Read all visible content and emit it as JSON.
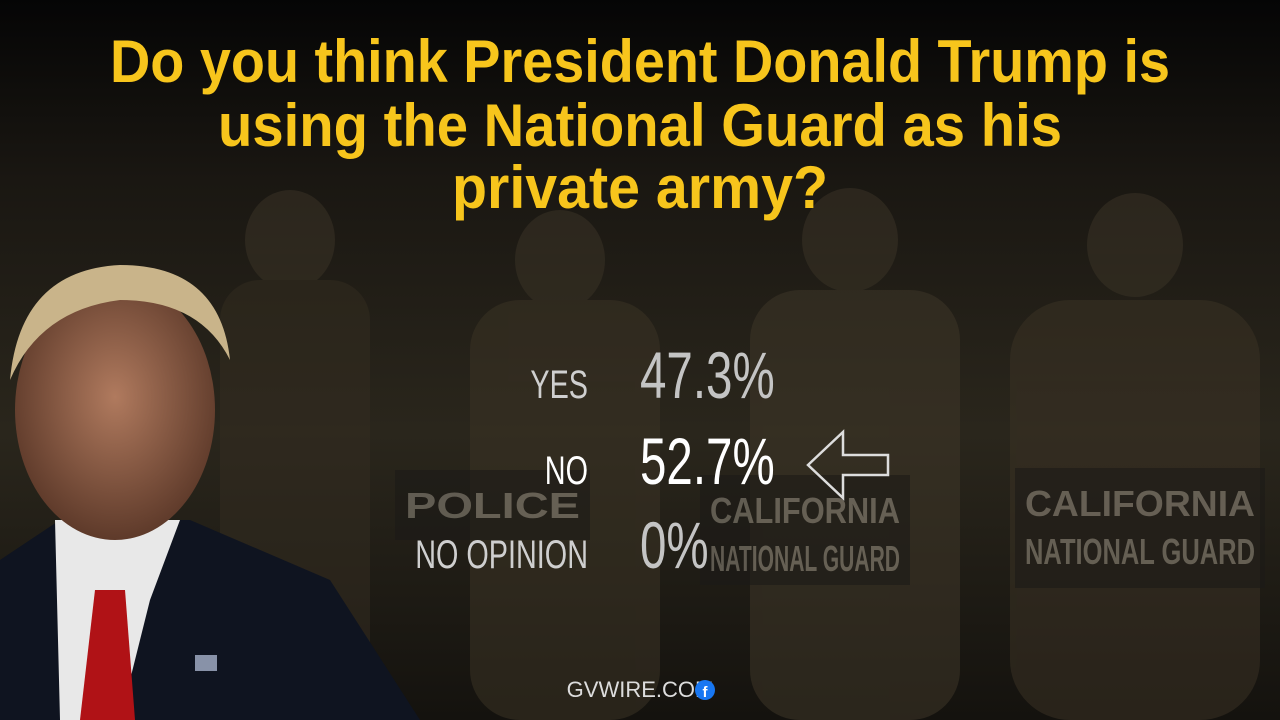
{
  "title_lines": [
    "Do you think President Donald Trump is",
    "using the National Guard as his",
    "private army?"
  ],
  "results": [
    {
      "label": "YES",
      "value": "47.3%",
      "highlighted": false
    },
    {
      "label": "NO",
      "value": "52.7%",
      "highlighted": true
    },
    {
      "label": "NO OPINION",
      "value": "0%",
      "highlighted": false
    }
  ],
  "background_signs": [
    {
      "lines": [
        "POLICE"
      ]
    },
    {
      "lines": [
        "CALIFORNIA",
        "NATIONAL GUARD"
      ]
    },
    {
      "lines": [
        "CALIFORNIA",
        "NATIONAL GUARD"
      ]
    }
  ],
  "footer": "GVWIRE.COM"
}
